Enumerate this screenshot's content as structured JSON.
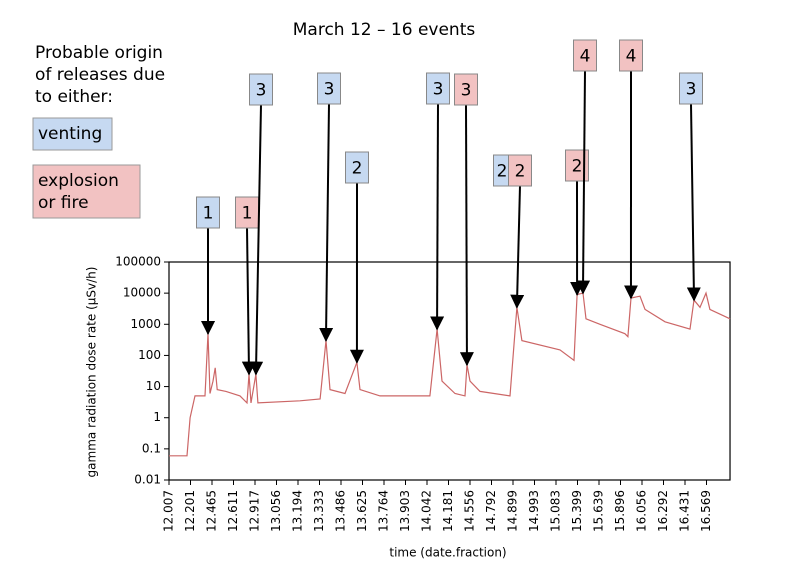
{
  "chart_data": {
    "type": "line",
    "title": "March 12 – 16 events",
    "xlabel": "time (date.fraction)",
    "ylabel": "gamma radiation dose rate (µSv/h)",
    "log_y": true,
    "ylim": [
      0.01,
      100000
    ],
    "yticks": [
      0.01,
      0.1,
      1,
      10,
      100,
      1000,
      10000,
      100000
    ],
    "xlim": [
      12.007,
      16.72
    ],
    "xticks": [
      12.007,
      12.201,
      12.465,
      12.611,
      12.917,
      13.056,
      13.194,
      13.333,
      13.486,
      13.625,
      13.764,
      13.903,
      14.042,
      14.181,
      14.556,
      14.792,
      14.899,
      14.993,
      15.083,
      15.399,
      15.639,
      15.896,
      16.056,
      16.292,
      16.431,
      16.569
    ],
    "series": [
      {
        "color": "#cc6666",
        "x": [
          12.007,
          12.169,
          12.197,
          12.256,
          12.379,
          12.416,
          12.44,
          12.472,
          12.487,
          12.5,
          12.56,
          12.704,
          12.803,
          12.832,
          12.86,
          12.923,
          12.936,
          13.207,
          13.337,
          13.379,
          13.408,
          13.512,
          13.589,
          13.609,
          13.738,
          14.061,
          14.107,
          14.139,
          14.294,
          14.468,
          14.503,
          14.556,
          14.666,
          14.884,
          14.916,
          14.938,
          15.142,
          15.348,
          15.393,
          15.46,
          15.494,
          15.651,
          15.929,
          15.951,
          15.974,
          16.041,
          16.089,
          16.302,
          16.463,
          16.489,
          16.527,
          16.566,
          16.591,
          16.72
        ],
        "values": [
          0.06,
          0.06,
          1,
          5,
          5,
          500,
          6,
          15,
          40,
          8,
          7,
          5,
          3,
          25,
          3,
          25,
          3,
          3.5,
          4,
          300,
          8,
          6,
          60,
          8,
          5,
          5,
          700,
          15,
          6,
          5,
          50,
          15,
          7,
          5,
          3500,
          300,
          150,
          70,
          9000,
          10000,
          1500,
          1000,
          500,
          400,
          7000,
          8000,
          3000,
          1200,
          700,
          6000,
          3500,
          10000,
          3000,
          1500
        ]
      }
    ],
    "legend_title": [
      "Probable origin",
      "of releases due",
      "to either:"
    ],
    "legend": [
      {
        "text": [
          "venting"
        ],
        "color": "#c6d9f1"
      },
      {
        "text": [
          "explosion",
          "or fire"
        ],
        "color": "#f2c2c2"
      }
    ],
    "annotations": [
      {
        "text": "1",
        "color": "#c6d9f1",
        "x": 12.416,
        "y": 500
      },
      {
        "text": "1",
        "color": "#f2c2c2",
        "x": 12.832,
        "y": 25
      },
      {
        "text": "3",
        "color": "#c6d9f1",
        "x": 12.923,
        "y": 25
      },
      {
        "text": "3",
        "color": "#c6d9f1",
        "x": 13.379,
        "y": 300
      },
      {
        "text": "2",
        "color": "#c6d9f1",
        "x": 13.589,
        "y": 60
      },
      {
        "text": "3",
        "color": "#c6d9f1",
        "x": 14.107,
        "y": 700
      },
      {
        "text": "3",
        "color": "#f2c2c2",
        "x": 14.503,
        "y": 50
      },
      {
        "text": "2",
        "color": "#c6d9f1",
        "x": null,
        "y": null
      },
      {
        "text": "2",
        "color": "#f2c2c2",
        "x": 14.916,
        "y": 3500
      },
      {
        "text": "2",
        "color": "#f2c2c2",
        "x": 15.393,
        "y": 9000
      },
      {
        "text": "4",
        "color": "#f2c2c2",
        "x": 15.46,
        "y": 10000
      },
      {
        "text": "4",
        "color": "#f2c2c2",
        "x": 15.974,
        "y": 7000
      },
      {
        "text": "3",
        "color": "#c6d9f1",
        "x": 16.489,
        "y": 6000
      }
    ]
  }
}
